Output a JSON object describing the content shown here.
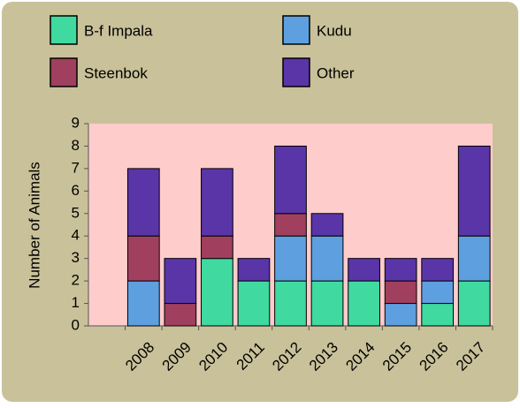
{
  "chart_data": {
    "type": "bar",
    "stacked": true,
    "y_label": "Number of Animals",
    "categories": [
      null,
      "2008",
      "2009",
      "2010",
      "2011",
      "2012",
      "2013",
      "2014",
      "2015",
      "2016",
      "2017"
    ],
    "series": [
      {
        "name": "B-f Impala",
        "color": "#40d9a0",
        "values": [
          null,
          0,
          0,
          3,
          2,
          2,
          2,
          2,
          0,
          1,
          2
        ]
      },
      {
        "name": "Kudu",
        "color": "#5e9fe0",
        "values": [
          null,
          2,
          0,
          0,
          0,
          2,
          2,
          0,
          1,
          1,
          2
        ]
      },
      {
        "name": "Steenbok",
        "color": "#a0405e",
        "values": [
          null,
          2,
          1,
          1,
          0,
          1,
          0,
          0,
          1,
          0,
          0
        ]
      },
      {
        "name": "Other",
        "color": "#5a35a8",
        "values": [
          null,
          3,
          2,
          3,
          1,
          3,
          1,
          1,
          1,
          1,
          4
        ]
      }
    ],
    "ylim": [
      0,
      9
    ],
    "yticks": [
      0,
      1,
      2,
      3,
      4,
      5,
      6,
      7,
      8,
      9
    ],
    "grid": false
  }
}
